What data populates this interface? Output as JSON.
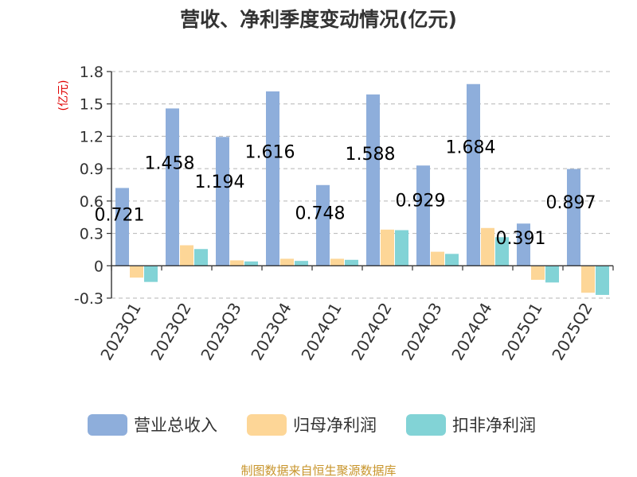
{
  "chart_data": {
    "type": "bar",
    "title": "营收、净利季度变动情况(亿元)",
    "ylabel": "(亿元)",
    "ylim": [
      -0.3,
      1.8
    ],
    "yticks": [
      "-0.3",
      "0",
      "0.3",
      "0.6",
      "0.9",
      "1.2",
      "1.5",
      "1.8"
    ],
    "grid": true,
    "legend_position": "bottom",
    "categories": [
      "2023Q1",
      "2023Q2",
      "2023Q3",
      "2023Q4",
      "2024Q1",
      "2024Q2",
      "2024Q3",
      "2024Q4",
      "2025Q1",
      "2025Q2"
    ],
    "series": [
      {
        "name": "营业总收入",
        "color": "#8eaedb",
        "values": [
          0.721,
          1.458,
          1.194,
          1.616,
          0.748,
          1.588,
          0.929,
          1.684,
          0.391,
          0.897
        ],
        "labels": [
          "0.721",
          "1.458",
          "1.194",
          "1.616",
          "0.748",
          "1.588",
          "0.929",
          "1.684",
          "0.391",
          "0.897"
        ]
      },
      {
        "name": "归母净利润",
        "color": "#fdd697",
        "values": [
          -0.11,
          0.19,
          0.05,
          0.065,
          0.065,
          0.335,
          0.13,
          0.35,
          -0.13,
          -0.25
        ]
      },
      {
        "name": "扣非净利润",
        "color": "#82d3d6",
        "values": [
          -0.15,
          0.155,
          0.04,
          0.045,
          0.055,
          0.33,
          0.11,
          0.265,
          -0.155,
          -0.27
        ]
      }
    ]
  },
  "footer": {
    "source": "制图数据来自恒生聚源数据库"
  }
}
